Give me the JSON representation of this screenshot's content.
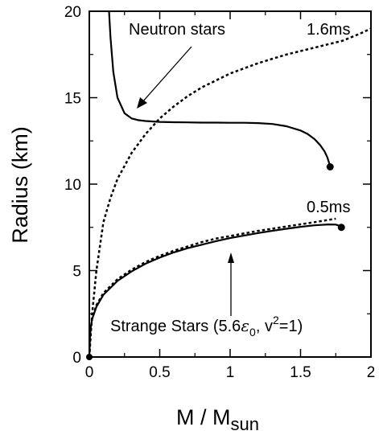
{
  "chart_data": {
    "type": "line",
    "title": "",
    "xlabel": "M / M",
    "xlabel_sub": "sun",
    "ylabel": "Radius (km)",
    "xlim": [
      0,
      2
    ],
    "ylim": [
      0,
      20
    ],
    "xticks": [
      0,
      0.5,
      1,
      1.5,
      2
    ],
    "xtick_labels": [
      "0",
      "0.5",
      "1",
      "1.5",
      "2"
    ],
    "yticks": [
      0,
      5,
      10,
      15,
      20
    ],
    "ytick_labels": [
      "0",
      "5",
      "10",
      "15",
      "20"
    ],
    "grid": false,
    "legend": "none",
    "series": [
      {
        "style": "solid",
        "color": "#000000",
        "x": [
          0.14,
          0.15,
          0.17,
          0.2,
          0.25,
          0.3,
          0.35,
          0.4,
          0.5,
          0.6,
          0.7,
          0.8,
          0.9,
          1.0,
          1.1,
          1.2,
          1.3,
          1.4,
          1.5,
          1.55,
          1.6,
          1.64,
          1.67,
          1.69,
          1.7,
          1.71
        ],
        "y": [
          20.0,
          18.5,
          16.5,
          15.0,
          14.1,
          13.8,
          13.7,
          13.65,
          13.6,
          13.58,
          13.57,
          13.56,
          13.56,
          13.55,
          13.55,
          13.53,
          13.48,
          13.35,
          13.1,
          12.9,
          12.6,
          12.25,
          11.9,
          11.55,
          11.3,
          11.0
        ],
        "endpoint": [
          1.71,
          11.0
        ]
      },
      {
        "style": "dotted",
        "color": "#000000",
        "x": [
          0,
          0.02,
          0.05,
          0.1,
          0.15,
          0.2,
          0.3,
          0.4,
          0.5,
          0.6,
          0.7,
          0.8,
          0.9,
          1.0,
          1.2,
          1.4,
          1.6,
          1.8,
          1.92,
          2.0
        ],
        "y": [
          0,
          2.5,
          5.0,
          7.8,
          9.2,
          10.3,
          11.8,
          12.9,
          13.8,
          14.5,
          15.1,
          15.6,
          16.0,
          16.4,
          17.0,
          17.5,
          17.9,
          18.3,
          18.7,
          19.0
        ]
      },
      {
        "style": "dotted",
        "color": "#000000",
        "x": [
          0,
          0.01,
          0.02,
          0.05,
          0.1,
          0.2,
          0.3,
          0.4,
          0.5,
          0.6,
          0.7,
          0.8,
          0.9,
          1.0,
          1.2,
          1.4,
          1.6,
          1.75
        ],
        "y": [
          0,
          1.6,
          2.2,
          3.0,
          3.7,
          4.5,
          5.05,
          5.5,
          5.85,
          6.15,
          6.4,
          6.65,
          6.85,
          7.0,
          7.3,
          7.55,
          7.8,
          8.0
        ]
      },
      {
        "style": "solid",
        "color": "#000000",
        "x": [
          0,
          0.005,
          0.01,
          0.02,
          0.05,
          0.1,
          0.2,
          0.3,
          0.4,
          0.5,
          0.6,
          0.7,
          0.8,
          0.9,
          1.0,
          1.1,
          1.2,
          1.3,
          1.4,
          1.5,
          1.6,
          1.7,
          1.75,
          1.78,
          1.79
        ],
        "y": [
          0,
          1.2,
          1.7,
          2.2,
          2.9,
          3.6,
          4.4,
          4.95,
          5.4,
          5.75,
          6.05,
          6.3,
          6.5,
          6.7,
          6.88,
          7.03,
          7.17,
          7.3,
          7.42,
          7.53,
          7.62,
          7.67,
          7.66,
          7.58,
          7.5
        ],
        "endpoint": [
          1.79,
          7.5
        ]
      }
    ],
    "origin_point": [
      0,
      0
    ],
    "annotations": {
      "neutron": {
        "text": "Neutron stars"
      },
      "ms16": {
        "text": "1.6ms"
      },
      "ms05": {
        "text": "0.5ms"
      },
      "strange": {
        "prefix": "Strange Stars (5.6",
        "epsilon": "ε",
        "sub0": "0",
        "mid": ", v",
        "sup2": "2",
        "suffix": "=1)"
      }
    }
  }
}
